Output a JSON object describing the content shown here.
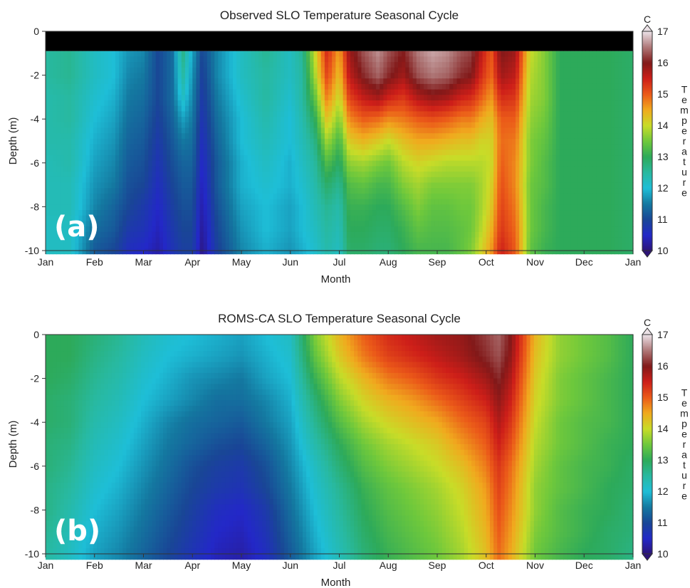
{
  "chart_data": [
    {
      "type": "heatmap",
      "panel_label": "(a)",
      "title": "Observed SLO Temperature Seasonal Cycle",
      "xlabel": "Month",
      "ylabel": "Depth (m)",
      "colorbar_label": "Temperature",
      "colorbar_unit": "C",
      "x_ticks": [
        "Jan",
        "Feb",
        "Mar",
        "Apr",
        "May",
        "Jun",
        "Jul",
        "Aug",
        "Sep",
        "Oct",
        "Nov",
        "Dec",
        "Jan"
      ],
      "y_ticks": [
        "0",
        "-2",
        "-4",
        "-6",
        "-8",
        "-10"
      ],
      "ylim": [
        -10,
        0
      ],
      "colorbar_ticks": [
        "17",
        "16",
        "15",
        "14",
        "13",
        "12",
        "11",
        "10"
      ],
      "clim": [
        10,
        17
      ],
      "no_data_band": [
        -0.9,
        0
      ],
      "depths": [
        -1,
        -2,
        -3,
        -4,
        -5,
        -6,
        -7,
        -8,
        -9,
        -10
      ],
      "x_months": [
        0,
        0.5,
        1,
        1.4,
        1.7,
        2,
        2.3,
        2.6,
        2.8,
        3,
        3.2,
        3.5,
        4,
        4.5,
        5,
        5.25,
        5.5,
        5.75,
        6,
        6.2,
        6.5,
        6.8,
        7,
        7.3,
        7.6,
        7.9,
        8.2,
        8.5,
        8.7,
        8.9,
        9.1,
        9.3,
        9.6,
        9.9,
        10.2,
        10.5,
        11,
        11.5,
        12
      ],
      "values": [
        [
          12.5,
          12.6,
          12.2,
          12.0,
          11.7,
          11.6,
          11.0,
          11.4,
          12.7,
          11.8,
          11.0,
          11.6,
          12.2,
          12.6,
          12.2,
          12.6,
          14.0,
          15.4,
          14.5,
          15.8,
          16.3,
          16.6,
          16.3,
          16.0,
          16.5,
          16.7,
          16.6,
          16.3,
          16.2,
          15.6,
          15.0,
          16.0,
          15.8,
          14.0,
          13.6,
          13.0,
          13.0,
          13.0,
          12.9
        ],
        [
          12.5,
          12.6,
          12.2,
          12.0,
          11.6,
          11.5,
          11.0,
          11.4,
          12.5,
          11.7,
          10.9,
          11.6,
          12.2,
          12.5,
          12.2,
          12.5,
          13.8,
          15.2,
          14.3,
          15.6,
          16.1,
          16.4,
          16.1,
          15.8,
          16.3,
          16.5,
          16.4,
          16.1,
          16.0,
          15.4,
          14.9,
          15.8,
          15.6,
          13.9,
          13.6,
          13.0,
          13.0,
          13.0,
          12.9
        ],
        [
          12.4,
          12.5,
          12.1,
          11.9,
          11.5,
          11.4,
          11.0,
          11.4,
          12.2,
          11.6,
          10.8,
          11.5,
          12.1,
          12.5,
          12.1,
          12.5,
          13.4,
          14.8,
          14.0,
          15.2,
          15.6,
          15.8,
          15.5,
          15.3,
          15.7,
          15.9,
          15.8,
          15.5,
          15.4,
          15.0,
          14.6,
          15.4,
          15.3,
          13.8,
          13.6,
          13.0,
          13.0,
          13.0,
          12.9
        ],
        [
          12.4,
          12.5,
          12.0,
          11.8,
          11.4,
          11.3,
          10.9,
          11.3,
          11.8,
          11.5,
          10.7,
          11.4,
          12.0,
          12.4,
          12.0,
          12.4,
          13.0,
          14.3,
          13.6,
          14.7,
          15.0,
          14.9,
          14.7,
          14.8,
          15.0,
          15.1,
          15.0,
          14.8,
          14.8,
          14.5,
          14.3,
          15.0,
          15.0,
          13.7,
          13.5,
          13.0,
          13.0,
          13.0,
          12.9
        ],
        [
          12.4,
          12.4,
          11.9,
          11.7,
          11.3,
          11.2,
          10.8,
          11.2,
          11.5,
          11.4,
          10.6,
          11.3,
          12.0,
          12.3,
          12.0,
          12.3,
          12.7,
          13.8,
          13.2,
          14.2,
          14.4,
          14.2,
          14.0,
          14.3,
          14.5,
          14.5,
          14.4,
          14.3,
          14.3,
          14.1,
          14.1,
          14.9,
          14.8,
          13.6,
          13.4,
          13.0,
          13.0,
          13.0,
          12.9
        ],
        [
          12.3,
          12.4,
          11.8,
          11.6,
          11.2,
          11.1,
          10.7,
          11.1,
          11.3,
          11.3,
          10.5,
          11.2,
          11.9,
          12.2,
          11.9,
          12.2,
          12.5,
          13.3,
          12.9,
          13.7,
          13.8,
          13.6,
          13.5,
          13.9,
          14.1,
          14.0,
          13.9,
          13.9,
          13.9,
          13.9,
          14.0,
          15.0,
          14.7,
          13.6,
          13.3,
          13.0,
          13.0,
          13.0,
          12.9
        ],
        [
          12.3,
          12.3,
          11.7,
          11.5,
          11.1,
          11.0,
          10.6,
          11.0,
          11.2,
          11.2,
          10.4,
          11.2,
          11.9,
          12.1,
          11.9,
          12.1,
          12.4,
          12.9,
          12.6,
          13.3,
          13.4,
          13.2,
          13.2,
          13.6,
          13.8,
          13.6,
          13.6,
          13.6,
          13.6,
          13.8,
          14.1,
          15.1,
          14.7,
          13.5,
          13.3,
          13.0,
          13.0,
          13.0,
          12.9
        ],
        [
          12.3,
          12.3,
          11.6,
          11.3,
          11.0,
          10.8,
          10.5,
          10.9,
          11.1,
          11.1,
          10.3,
          11.1,
          11.8,
          12.0,
          11.8,
          12.0,
          12.3,
          12.6,
          12.4,
          13.1,
          13.1,
          13.0,
          13.0,
          13.3,
          13.6,
          13.4,
          13.4,
          13.5,
          13.5,
          13.8,
          14.2,
          15.2,
          14.8,
          13.5,
          13.2,
          13.0,
          13.0,
          13.0,
          12.9
        ],
        [
          12.2,
          12.2,
          11.4,
          11.2,
          10.8,
          10.7,
          10.4,
          10.8,
          11.0,
          11.0,
          10.2,
          11.0,
          11.7,
          12.0,
          11.8,
          12.0,
          12.2,
          12.5,
          12.3,
          13.0,
          13.0,
          12.9,
          12.9,
          13.1,
          13.4,
          13.3,
          13.3,
          13.4,
          13.5,
          13.9,
          14.4,
          15.3,
          14.9,
          13.5,
          13.2,
          13.0,
          13.0,
          13.0,
          12.9
        ],
        [
          12.2,
          12.2,
          11.2,
          11.0,
          10.6,
          10.5,
          10.3,
          10.7,
          10.9,
          10.9,
          10.1,
          10.9,
          11.6,
          11.9,
          11.7,
          11.9,
          12.1,
          12.4,
          12.2,
          12.9,
          12.9,
          12.8,
          12.8,
          13.0,
          13.2,
          13.2,
          13.2,
          13.4,
          13.6,
          14.1,
          14.6,
          15.5,
          15.0,
          13.4,
          13.1,
          13.0,
          13.0,
          13.0,
          12.9
        ]
      ]
    },
    {
      "type": "heatmap",
      "panel_label": "(b)",
      "title": "ROMS-CA  SLO Temperature Seasonal Cycle",
      "xlabel": "Month",
      "ylabel": "Depth (m)",
      "colorbar_label": "Temperature",
      "colorbar_unit": "C",
      "x_ticks": [
        "Jan",
        "Feb",
        "Mar",
        "Apr",
        "May",
        "Jun",
        "Jul",
        "Aug",
        "Sep",
        "Oct",
        "Nov",
        "Dec",
        "Jan"
      ],
      "y_ticks": [
        "0",
        "-2",
        "-4",
        "-6",
        "-8",
        "-10"
      ],
      "ylim": [
        -10,
        0
      ],
      "colorbar_ticks": [
        "17",
        "16",
        "15",
        "14",
        "13",
        "12",
        "11",
        "10"
      ],
      "clim": [
        10,
        17
      ],
      "depths": [
        0,
        -1,
        -2,
        -3,
        -4,
        -5,
        -6,
        -7,
        -8,
        -9,
        -10
      ],
      "x_months": [
        0,
        0.5,
        1,
        1.5,
        2,
        2.5,
        3,
        3.5,
        4,
        4.5,
        5,
        5.5,
        6,
        6.5,
        7,
        7.5,
        8,
        8.5,
        9,
        9.25,
        9.5,
        10,
        10.5,
        11,
        11.5,
        12
      ],
      "values": [
        [
          13.0,
          13.0,
          12.8,
          12.6,
          12.3,
          12.1,
          12.0,
          11.9,
          11.8,
          12.0,
          12.2,
          13.6,
          14.4,
          15.0,
          15.4,
          15.6,
          15.8,
          15.9,
          16.2,
          16.4,
          16.0,
          14.4,
          13.7,
          13.5,
          13.3,
          13.0
        ],
        [
          13.0,
          13.0,
          12.7,
          12.5,
          12.2,
          12.0,
          11.9,
          11.8,
          11.7,
          11.9,
          12.1,
          13.4,
          14.2,
          14.8,
          15.2,
          15.4,
          15.6,
          15.8,
          16.1,
          16.3,
          15.9,
          14.3,
          13.7,
          13.5,
          13.3,
          13.0
        ],
        [
          13.0,
          12.9,
          12.6,
          12.4,
          12.1,
          11.9,
          11.7,
          11.6,
          11.5,
          11.8,
          12.0,
          13.1,
          13.9,
          14.4,
          14.8,
          15.0,
          15.3,
          15.5,
          15.8,
          16.1,
          15.7,
          14.2,
          13.6,
          13.4,
          13.2,
          13.0
        ],
        [
          12.9,
          12.8,
          12.5,
          12.3,
          12.0,
          11.8,
          11.6,
          11.4,
          11.4,
          11.6,
          11.9,
          12.8,
          13.6,
          14.1,
          14.4,
          14.6,
          14.9,
          15.2,
          15.5,
          15.9,
          15.5,
          14.1,
          13.6,
          13.4,
          13.2,
          13.0
        ],
        [
          12.9,
          12.8,
          12.4,
          12.2,
          11.9,
          11.6,
          11.4,
          11.3,
          11.2,
          11.5,
          11.8,
          12.6,
          13.3,
          13.8,
          14.1,
          14.3,
          14.5,
          14.9,
          15.2,
          15.7,
          15.3,
          14.0,
          13.5,
          13.3,
          13.2,
          13.0
        ],
        [
          12.8,
          12.7,
          12.3,
          12.1,
          11.8,
          11.5,
          11.3,
          11.1,
          11.0,
          11.3,
          11.7,
          12.4,
          13.0,
          13.5,
          13.8,
          14.0,
          14.2,
          14.6,
          15.0,
          15.5,
          15.1,
          13.9,
          13.5,
          13.3,
          13.1,
          13.0
        ],
        [
          12.8,
          12.6,
          12.2,
          12.0,
          11.7,
          11.4,
          11.1,
          10.9,
          10.8,
          11.1,
          11.6,
          12.2,
          12.8,
          13.3,
          13.6,
          13.8,
          14.0,
          14.3,
          14.8,
          15.3,
          14.9,
          13.8,
          13.4,
          13.2,
          13.1,
          12.9
        ],
        [
          12.7,
          12.5,
          12.1,
          11.9,
          11.6,
          11.3,
          11.0,
          10.8,
          10.7,
          11.0,
          11.5,
          12.1,
          12.6,
          13.1,
          13.4,
          13.6,
          13.8,
          14.1,
          14.6,
          15.2,
          14.8,
          13.7,
          13.4,
          13.2,
          13.0,
          12.9
        ],
        [
          12.7,
          12.4,
          12.0,
          11.8,
          11.5,
          11.2,
          10.9,
          10.6,
          10.5,
          10.8,
          11.4,
          12.0,
          12.5,
          13.0,
          13.3,
          13.5,
          13.7,
          14.0,
          14.5,
          15.1,
          14.7,
          13.7,
          13.3,
          13.1,
          13.0,
          12.8
        ],
        [
          12.6,
          12.3,
          11.9,
          11.7,
          11.4,
          11.1,
          10.8,
          10.5,
          10.4,
          10.7,
          11.3,
          11.9,
          12.4,
          12.9,
          13.2,
          13.4,
          13.6,
          13.9,
          14.4,
          15.0,
          14.6,
          13.6,
          13.3,
          13.1,
          12.9,
          12.8
        ],
        [
          12.5,
          12.2,
          11.8,
          11.6,
          11.3,
          11.0,
          10.7,
          10.4,
          10.3,
          10.6,
          11.2,
          11.8,
          12.3,
          12.8,
          13.1,
          13.3,
          13.5,
          13.8,
          14.3,
          14.9,
          14.5,
          13.5,
          13.2,
          13.0,
          12.9,
          12.7
        ]
      ]
    }
  ]
}
